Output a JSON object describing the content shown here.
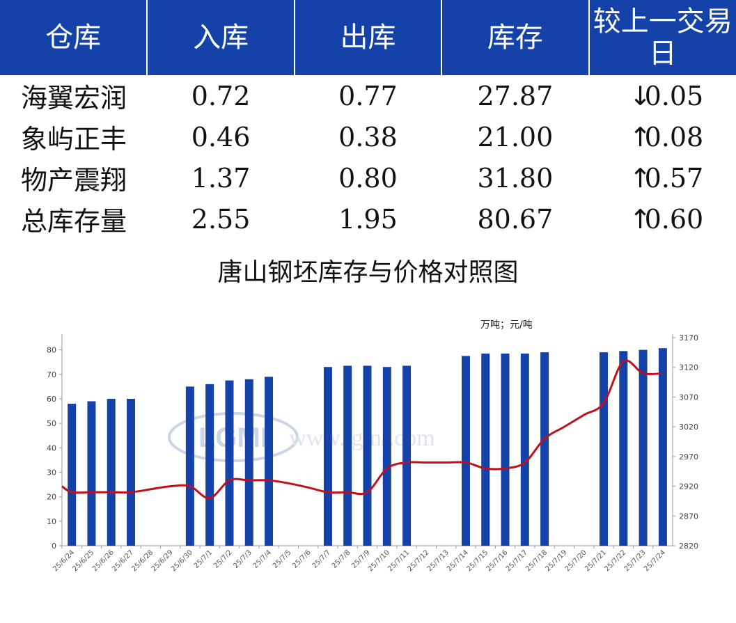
{
  "table": {
    "headers": [
      "仓库",
      "入库",
      "出库",
      "库存",
      "较上一交易日"
    ],
    "rows": [
      {
        "name": "海翼宏润",
        "in": "0.72",
        "out": "0.77",
        "stock": "27.87",
        "dir": "down",
        "change": "0.05"
      },
      {
        "name": "象屿正丰",
        "in": "0.46",
        "out": "0.38",
        "stock": "21.00",
        "dir": "up",
        "change": "0.08"
      },
      {
        "name": "物产震翔",
        "in": "1.37",
        "out": "0.80",
        "stock": "31.80",
        "dir": "up",
        "change": "0.57"
      },
      {
        "name": "总库存量",
        "in": "2.55",
        "out": "1.95",
        "stock": "80.67",
        "dir": "up",
        "change": "0.60"
      }
    ]
  },
  "watermark": {
    "logo": "LGMI",
    "url": "www.lgmi.com"
  },
  "colors": {
    "header_bg": "#1542a8",
    "bar": "#1542a8",
    "line": "#c0101e",
    "up": "#e81010",
    "down": "#1a8c1a"
  },
  "chart_data": {
    "type": "bar+line",
    "title": "唐山钢坯库存与价格对照图",
    "unit_label": "万吨；元/吨",
    "categories": [
      "25/6/24",
      "25/6/25",
      "25/6/26",
      "25/6/27",
      "25/6/28",
      "25/6/29",
      "25/6/30",
      "25/7/1",
      "25/7/2",
      "25/7/3",
      "25/7/4",
      "25/7/5",
      "25/7/6",
      "25/7/7",
      "25/7/8",
      "25/7/9",
      "25/7/10",
      "25/7/11",
      "25/7/12",
      "25/7/13",
      "25/7/14",
      "25/7/15",
      "25/7/16",
      "25/7/17",
      "25/7/18",
      "25/7/19",
      "25/7/20",
      "25/7/21",
      "25/7/22",
      "25/7/23",
      "25/7/24"
    ],
    "series": [
      {
        "name": "",
        "type": "bar",
        "axis": "left",
        "values": [
          58,
          59,
          60,
          60,
          null,
          null,
          65,
          66,
          67.5,
          68,
          69,
          null,
          null,
          73,
          73.5,
          73.5,
          73,
          73.5,
          null,
          null,
          77.5,
          78.5,
          78.5,
          78.5,
          79,
          null,
          null,
          79,
          79.5,
          80,
          80.67
        ]
      },
      {
        "name": "",
        "type": "line",
        "axis": "right",
        "values": [
          2910,
          2910,
          2910,
          2910,
          2915,
          2920,
          2920,
          2900,
          2930,
          2930,
          2930,
          2925,
          2918,
          2910,
          2910,
          2910,
          2950,
          2960,
          2960,
          2960,
          2960,
          2950,
          2950,
          2960,
          3000,
          3020,
          3040,
          3060,
          3130,
          3110,
          3110
        ]
      }
    ],
    "y_left": {
      "min": 0,
      "max": 85,
      "ticks": [
        0,
        10,
        20,
        30,
        40,
        50,
        60,
        70,
        80
      ]
    },
    "y_right": {
      "min": 2820,
      "max": 3170,
      "ticks": [
        2820,
        2870,
        2920,
        2970,
        3020,
        3070,
        3120,
        3170
      ]
    },
    "grid": false,
    "legend": "none"
  }
}
